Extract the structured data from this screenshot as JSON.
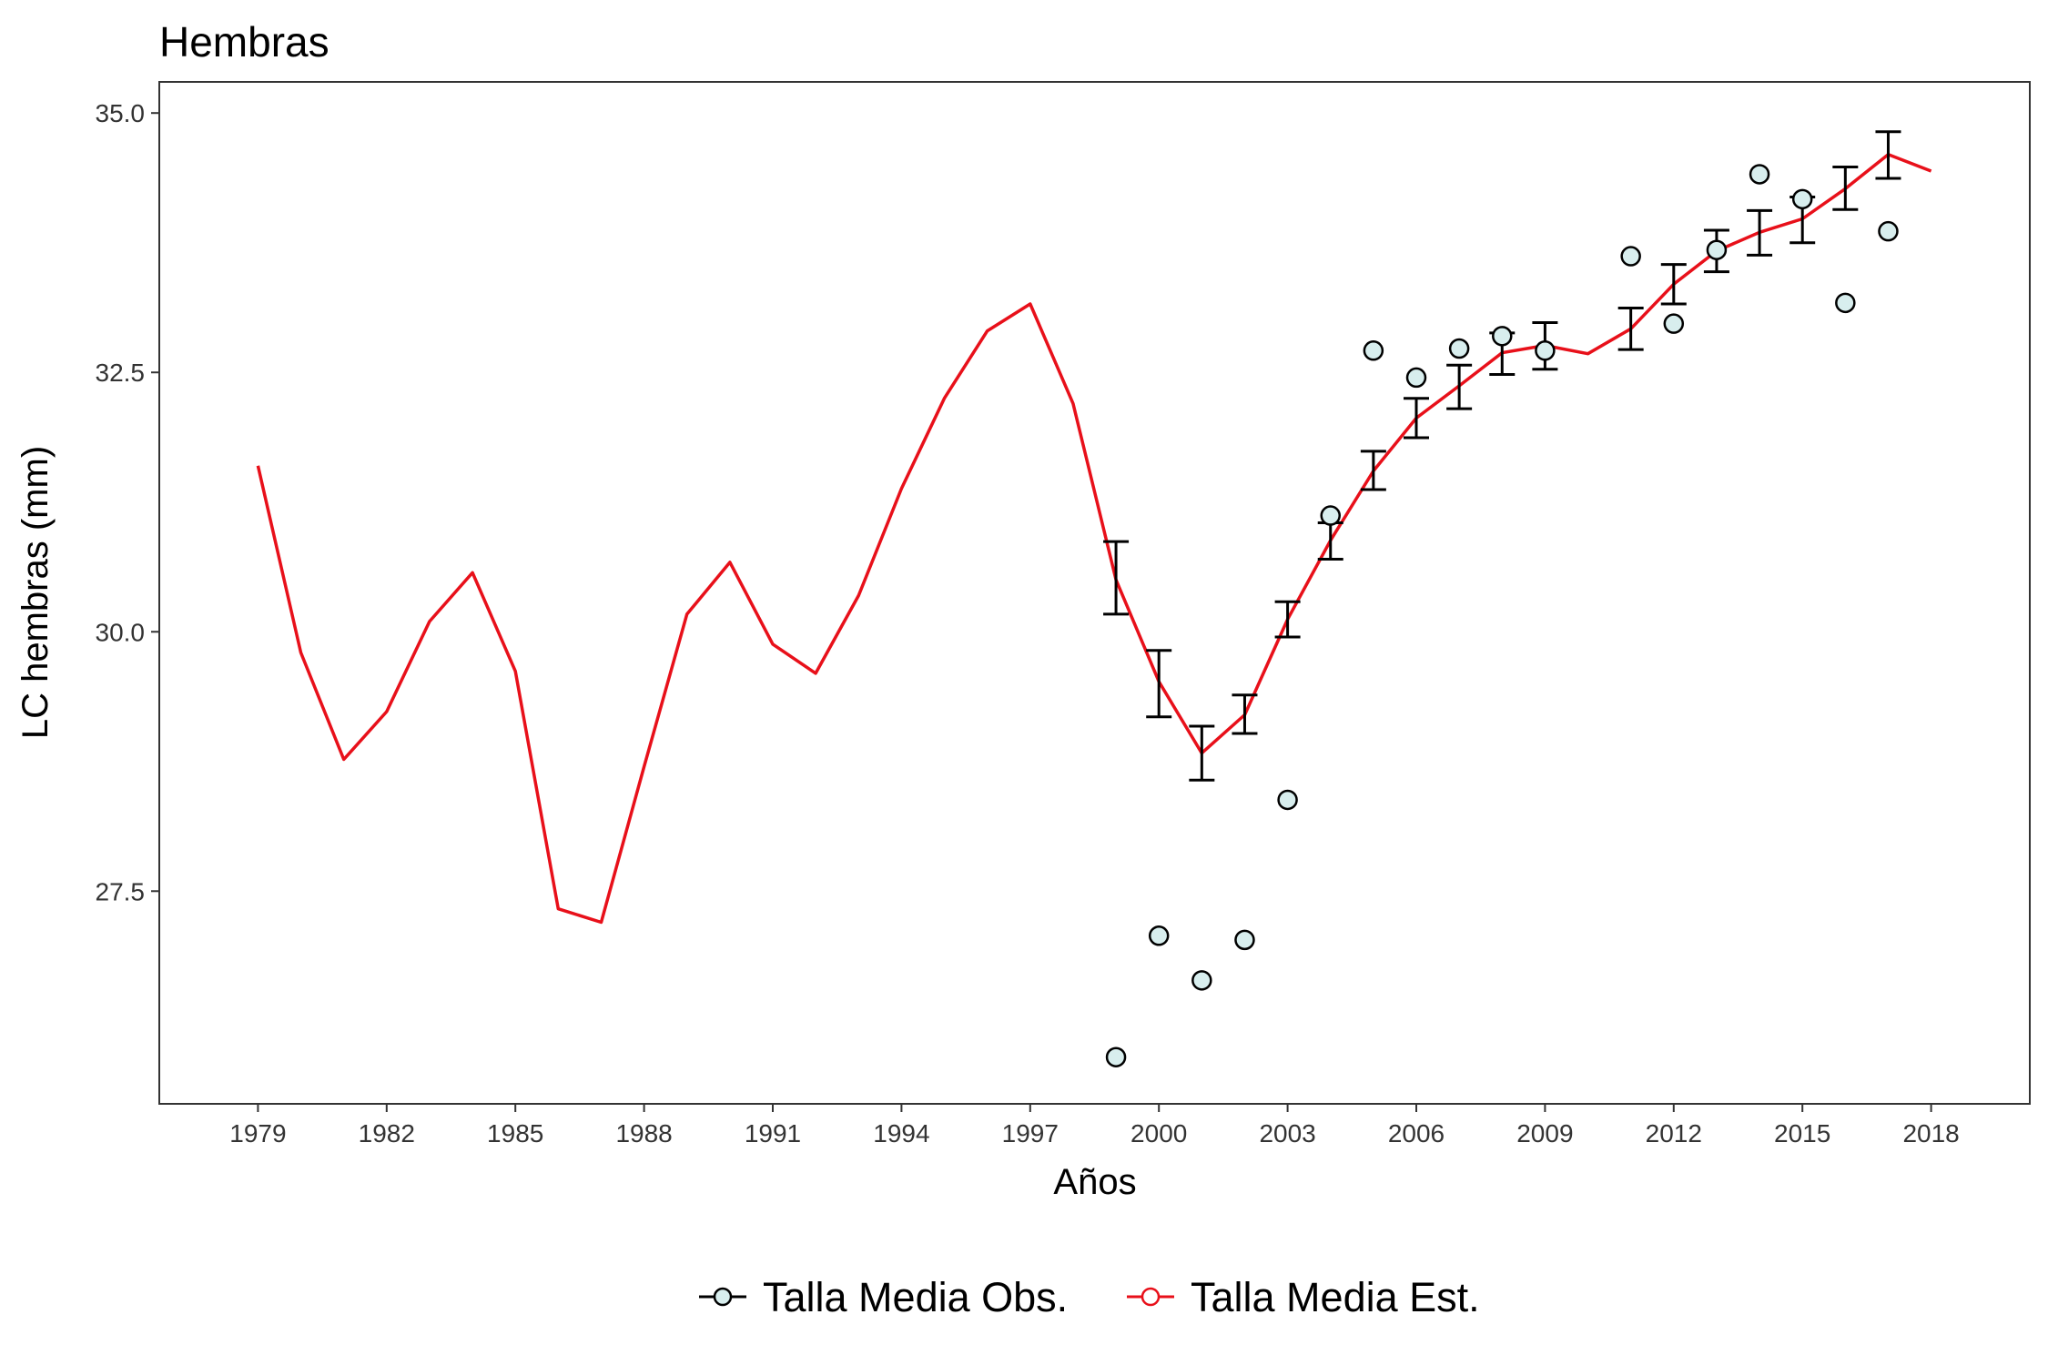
{
  "chart_data": {
    "type": "line",
    "title": "Hembras",
    "xlabel": "Años",
    "ylabel": "LC hembras (mm)",
    "xlim": [
      1976.7,
      2020.3
    ],
    "ylim": [
      25.45,
      35.3
    ],
    "x_ticks": [
      1979,
      1982,
      1985,
      1988,
      1991,
      1994,
      1997,
      2000,
      2003,
      2006,
      2009,
      2012,
      2015,
      2018
    ],
    "y_ticks": [
      27.5,
      30.0,
      32.5,
      35.0
    ],
    "y_tick_labels": [
      "27.5",
      "30.0",
      "32.5",
      "35.0"
    ],
    "grid": false,
    "legend_position": "bottom",
    "colors": {
      "estimated": "#e8101a",
      "observed_fill": "#d8eeee",
      "observed_stroke": "#000000",
      "errorbar": "#000000"
    },
    "series": [
      {
        "name": "Talla Media Obs.",
        "kind": "points",
        "x": [
          1999,
          2000,
          2001,
          2002,
          2003,
          2004,
          2005,
          2006,
          2007,
          2008,
          2009,
          2011,
          2012,
          2013,
          2014,
          2015,
          2016,
          2017
        ],
        "y": [
          25.9,
          27.07,
          26.64,
          27.03,
          28.38,
          31.12,
          32.71,
          32.45,
          32.73,
          32.85,
          32.71,
          33.62,
          32.97,
          33.68,
          34.41,
          34.17,
          33.17,
          33.86
        ]
      },
      {
        "name": "Talla Media Est.",
        "kind": "line",
        "x": [
          1979,
          1980,
          1981,
          1982,
          1983,
          1984,
          1985,
          1986,
          1987,
          1988,
          1989,
          1990,
          1991,
          1992,
          1993,
          1994,
          1995,
          1996,
          1997,
          1998,
          1999,
          2000,
          2001,
          2002,
          2003,
          2004,
          2005,
          2006,
          2007,
          2008,
          2009,
          2010,
          2011,
          2012,
          2013,
          2014,
          2015,
          2016,
          2017,
          2018
        ],
        "y": [
          31.6,
          29.8,
          28.77,
          29.23,
          30.1,
          30.57,
          29.62,
          27.33,
          27.2,
          28.7,
          30.17,
          30.67,
          29.88,
          29.6,
          30.35,
          31.38,
          32.25,
          32.9,
          33.16,
          32.2,
          30.5,
          29.52,
          28.83,
          29.2,
          30.12,
          30.88,
          31.55,
          32.06,
          32.37,
          32.69,
          32.76,
          32.68,
          32.92,
          33.35,
          33.67,
          33.85,
          33.98,
          34.27,
          34.6,
          34.44
        ]
      },
      {
        "name": "error_bars",
        "kind": "errorbar",
        "x": [
          1999,
          2000,
          2001,
          2002,
          2003,
          2004,
          2005,
          2006,
          2007,
          2008,
          2009,
          2011,
          2012,
          2013,
          2014,
          2015,
          2016,
          2017
        ],
        "low": [
          30.17,
          29.18,
          28.57,
          29.02,
          29.95,
          30.7,
          31.37,
          31.87,
          32.15,
          32.48,
          32.53,
          32.72,
          33.16,
          33.47,
          33.63,
          33.75,
          34.07,
          34.37
        ],
        "high": [
          30.87,
          29.82,
          29.09,
          29.39,
          30.29,
          31.05,
          31.74,
          32.25,
          32.57,
          32.88,
          32.98,
          33.12,
          33.54,
          33.87,
          34.06,
          34.19,
          34.48,
          34.82
        ]
      }
    ]
  }
}
